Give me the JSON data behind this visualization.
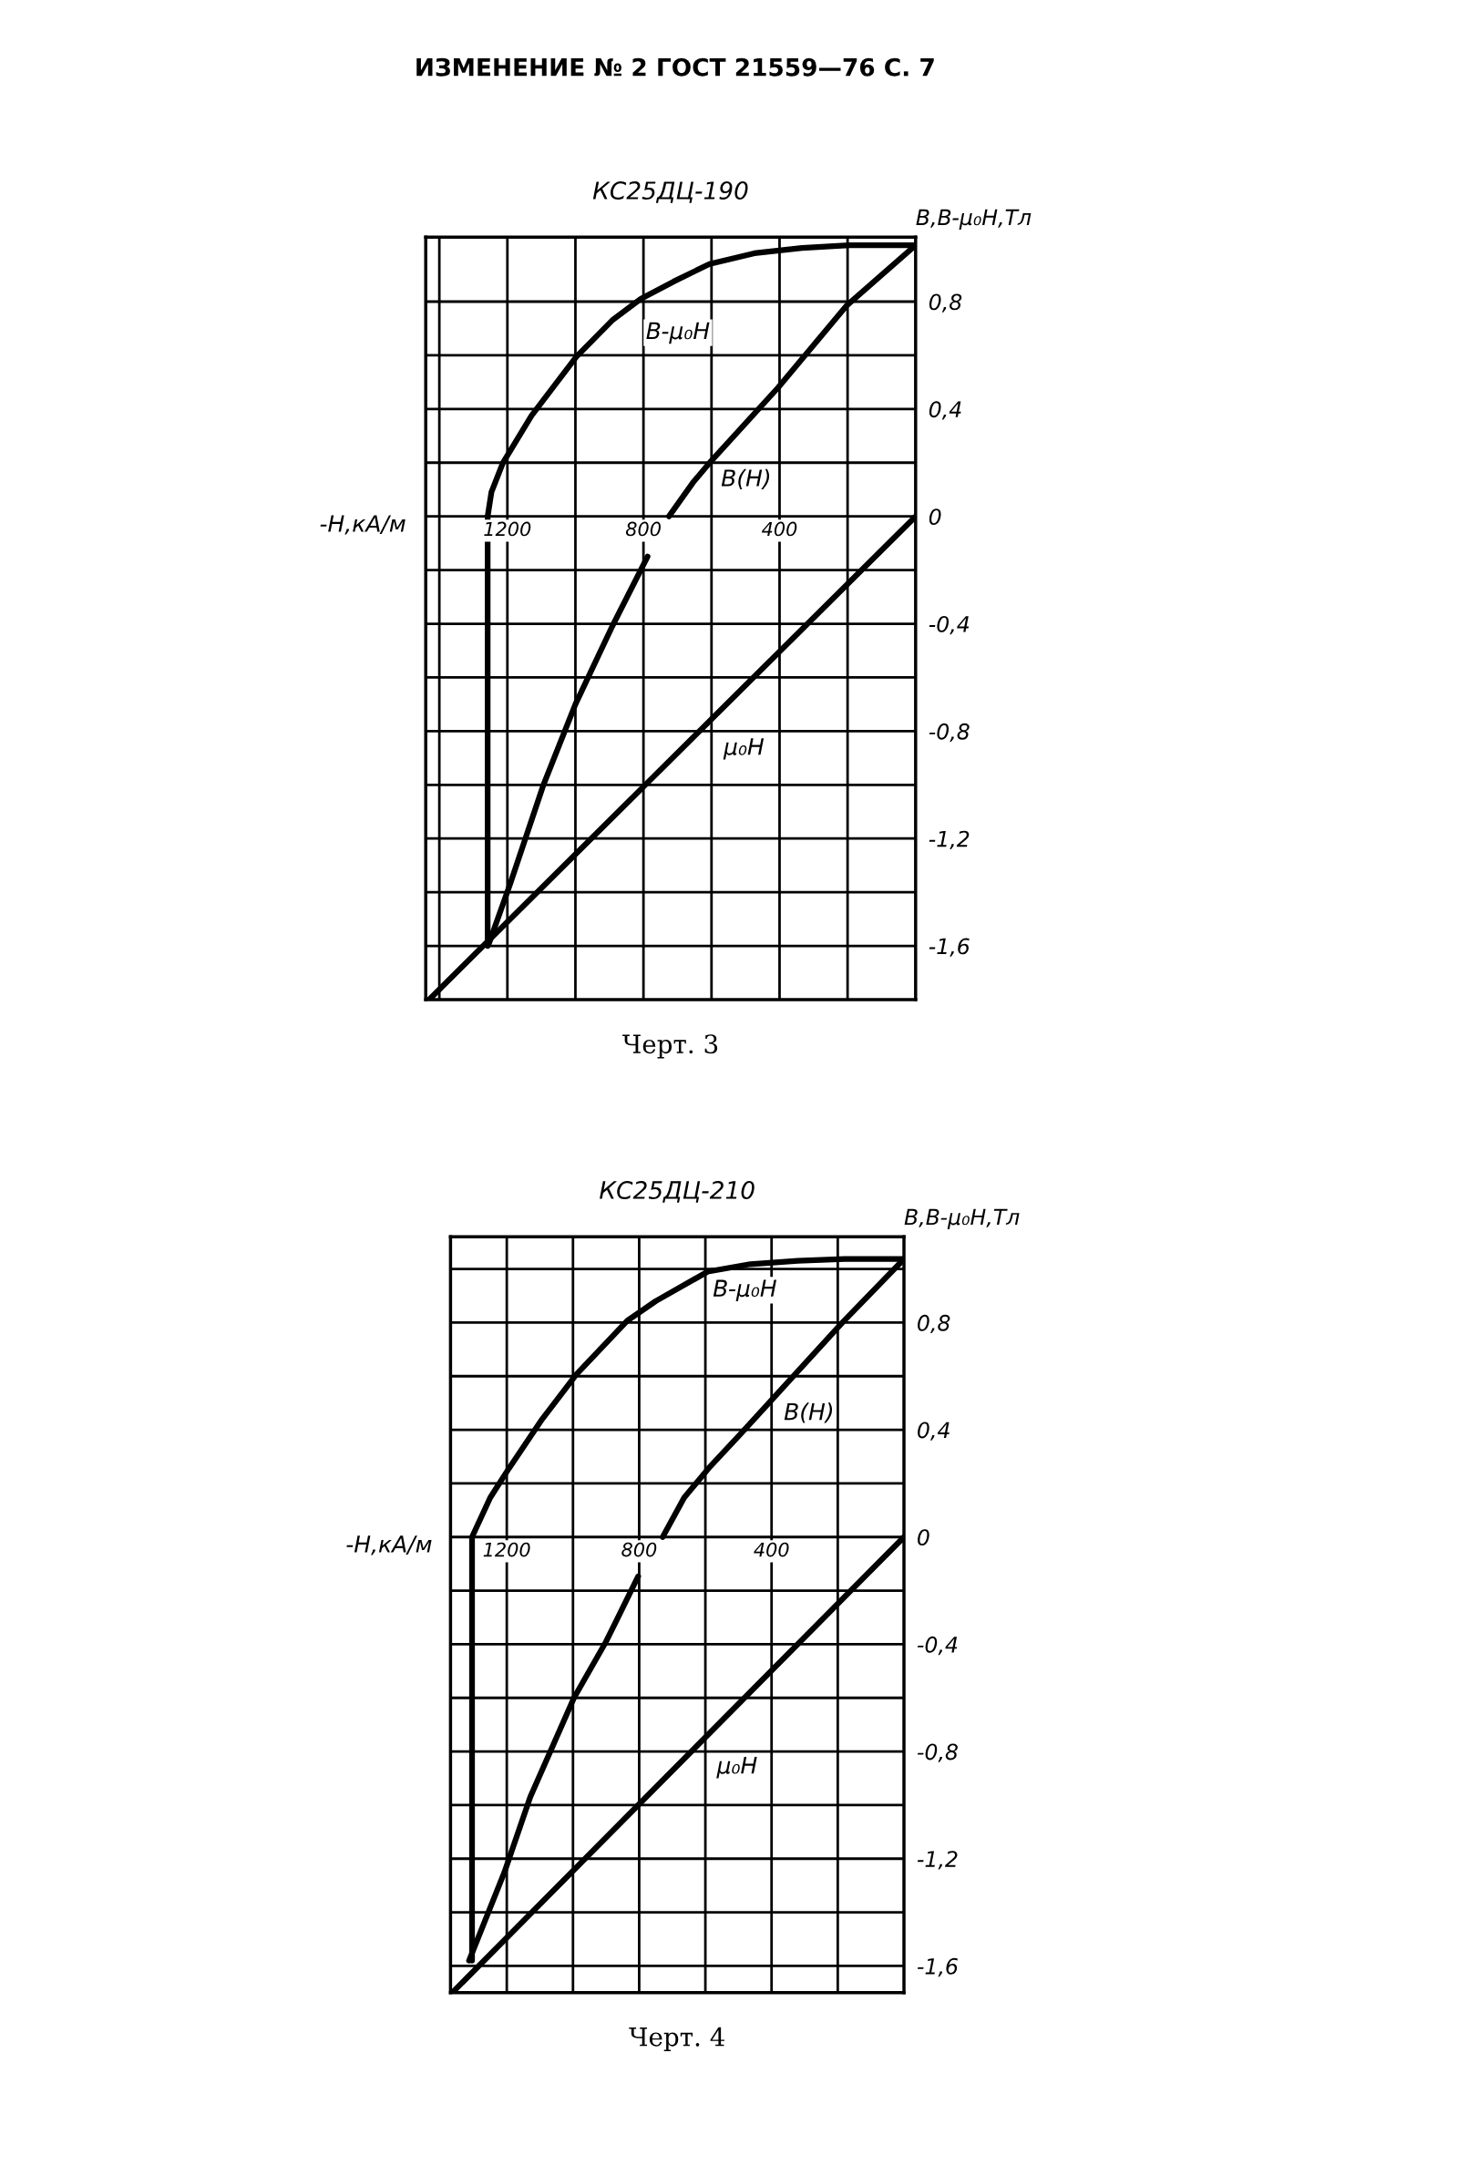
{
  "chart_data": [
    {
      "type": "line",
      "title": "КС25ДЦ-190",
      "xlabel": "-H,кА/м",
      "ylabel": "B,B-μ₀H,Тл",
      "xlim": [
        1440,
        0
      ],
      "ylim": [
        -1.8,
        1.04
      ],
      "xticks": [
        {
          "value": 1400,
          "label": null
        },
        1200,
        {
          "value": 1000,
          "label": null
        },
        800,
        {
          "value": 600,
          "label": null
        },
        400,
        {
          "value": 200,
          "label": null
        }
      ],
      "yticks": [
        {
          "value": 0.8,
          "label": "0,8"
        },
        {
          "value": 0.6,
          "label": null
        },
        {
          "value": 0.4,
          "label": "0,4"
        },
        {
          "value": 0.2,
          "label": null
        },
        0,
        {
          "value": -0.2,
          "label": null
        },
        {
          "value": -0.4,
          "label": "-0,4"
        },
        {
          "value": -0.6,
          "label": null
        },
        {
          "value": -0.8,
          "label": "-0,8"
        },
        {
          "value": -1.0,
          "label": null
        },
        {
          "value": -1.2,
          "label": "-1,2"
        },
        {
          "value": -1.4,
          "label": null
        },
        {
          "value": -1.6,
          "label": "-1,6"
        }
      ],
      "grid": true,
      "series": [
        {
          "name": "B-μ₀H",
          "color": "#000000",
          "x": [
            1258,
            1258,
            1247,
            1213,
            1129,
            997,
            892,
            808,
            711,
            606,
            474,
            334,
            195,
            0
          ],
          "values": [
            -1.6,
            0,
            0.09,
            0.2,
            0.375,
            0.595,
            0.73,
            0.81,
            0.875,
            0.94,
            0.98,
            1.0,
            1.01,
            1.01
          ]
        },
        {
          "name": "B(H)",
          "color": "#000000",
          "x": [
            1254,
            1192,
            1094,
            1000,
            892,
            788,
            null,
            725,
            655,
            602,
            404,
            202,
            0
          ],
          "values": [
            -1.59,
            -1.37,
            -1.0,
            -0.7,
            -0.41,
            -0.15,
            null,
            0,
            0.125,
            0.205,
            0.48,
            0.786,
            1.01
          ]
        },
        {
          "name": "μ₀H",
          "color": "#000000",
          "x": [
            0,
            1430
          ],
          "values": [
            0,
            -1.8
          ]
        }
      ],
      "annotations": [
        "ИЗМЕНЕНИЕ № 2 ГОСТ 21559—76 С. 7",
        "Черт. 3"
      ]
    },
    {
      "type": "line",
      "title": "КС25ДЦ-210",
      "xlabel": "-H,кА/м",
      "ylabel": "B,B-μ₀H,Тл",
      "xlim": [
        1370,
        0
      ],
      "ylim": [
        -1.7,
        1.12
      ],
      "xticks": [
        1200,
        {
          "value": 1000,
          "label": null
        },
        800,
        {
          "value": 600,
          "label": null
        },
        400,
        {
          "value": 200,
          "label": null
        }
      ],
      "yticks": [
        {
          "value": 1.0,
          "label": null
        },
        {
          "value": 0.8,
          "label": "0,8"
        },
        {
          "value": 0.6,
          "label": null
        },
        {
          "value": 0.4,
          "label": "0,4"
        },
        {
          "value": 0.2,
          "label": null
        },
        0,
        {
          "value": -0.2,
          "label": null
        },
        {
          "value": -0.4,
          "label": "-0,4"
        },
        {
          "value": -0.6,
          "label": null
        },
        {
          "value": -0.8,
          "label": "-0,8"
        },
        {
          "value": -1.0,
          "label": null
        },
        {
          "value": -1.2,
          "label": "-1,2"
        },
        {
          "value": -1.4,
          "label": null
        },
        {
          "value": -1.6,
          "label": "-1,6"
        }
      ],
      "grid": true,
      "series": [
        {
          "name": "B-μ₀H",
          "color": "#000000",
          "x": [
            1305,
            1305,
            1250,
            1193,
            1093,
            990,
            836,
            750,
            593,
            464,
            321,
            179,
            0
          ],
          "values": [
            -1.58,
            0,
            0.147,
            0.257,
            0.44,
            0.606,
            0.807,
            0.88,
            0.99,
            1.018,
            1.03,
            1.037,
            1.037
          ]
        },
        {
          "name": "B(H)",
          "color": "#000000",
          "x": [
            1314,
            1207,
            1129,
            997,
            900,
            803,
            null,
            729,
            664,
            590,
            493,
            386,
            186,
            0
          ],
          "values": [
            -1.58,
            -1.25,
            -0.97,
            -0.6,
            -0.39,
            -0.147,
            null,
            0,
            0.147,
            0.257,
            0.385,
            0.53,
            0.8,
            1.037
          ]
        },
        {
          "name": "μ₀H",
          "color": "#000000",
          "x": [
            0,
            1365
          ],
          "values": [
            0,
            -1.7
          ]
        }
      ],
      "annotations": [
        "Черт. 4"
      ]
    }
  ]
}
